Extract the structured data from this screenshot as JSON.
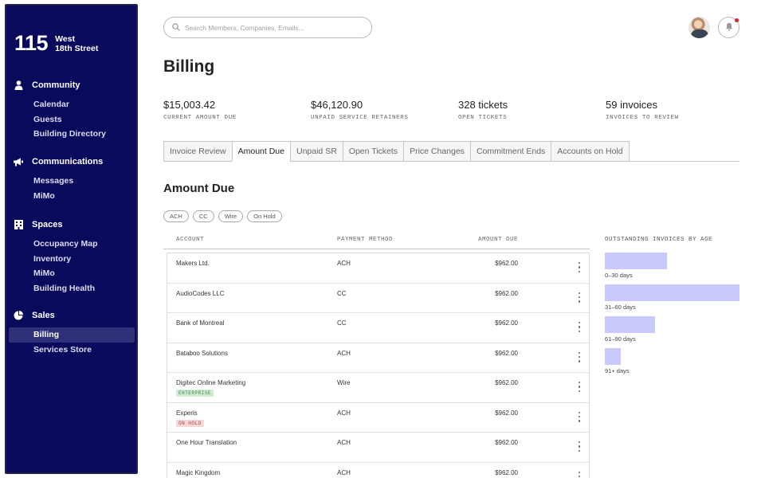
{
  "brand": {
    "number": "115",
    "line1": "West",
    "line2": "18th Street"
  },
  "sidebar": {
    "sections": [
      {
        "title": "Community",
        "icon": "person-icon",
        "items": [
          "Calendar",
          "Guests",
          "Building Directory"
        ]
      },
      {
        "title": "Communications",
        "icon": "megaphone-icon",
        "items": [
          "Messages",
          "MiMo"
        ]
      },
      {
        "title": "Spaces",
        "icon": "building-icon",
        "items": [
          "Occupancy Map",
          "Inventory",
          "MiMo",
          "Building Health"
        ]
      },
      {
        "title": "Sales",
        "icon": "pie-chart-icon",
        "items": [
          "Billing",
          "Services Store"
        ]
      }
    ],
    "active_item": "Billing"
  },
  "search": {
    "placeholder": "Search Members, Companies, Emails...",
    "value": ""
  },
  "page": {
    "title": "Billing"
  },
  "stats": [
    {
      "value": "$15,003.42",
      "label": "CURRENT AMOUNT DUE"
    },
    {
      "value": "$46,120.90",
      "label": "UNPAID SERVICE RETAINERS"
    },
    {
      "value": "328 tickets",
      "label": "OPEN TICKETS"
    },
    {
      "value": "59 invoices",
      "label": "INVOICES TO REVIEW"
    }
  ],
  "tabs": {
    "items": [
      "Invoice Review",
      "Amount Due",
      "Unpaid SR",
      "Open Tickets",
      "Price Changes",
      "Commitment Ends",
      "Accounts on Hold"
    ],
    "active": "Amount Due"
  },
  "section": {
    "title": "Amount Due"
  },
  "filters": [
    "ACH",
    "CC",
    "Wire",
    "On Hold"
  ],
  "table": {
    "headers": {
      "account": "ACCOUNT",
      "payment_method": "PAYMENT METHOD",
      "amount_due": "AMOUNT DUE"
    },
    "rows": [
      {
        "account": "Makers Ltd.",
        "payment_method": "ACH",
        "amount": "$962.00"
      },
      {
        "account": "AudioCodes LLC",
        "payment_method": "CC",
        "amount": "$962.00"
      },
      {
        "account": "Bank of Montreal",
        "payment_method": "CC",
        "amount": "$962.00"
      },
      {
        "account": "Bataboo Solutions",
        "payment_method": "ACH",
        "amount": "$962.00"
      },
      {
        "account": "Digitec Online Marketing",
        "payment_method": "Wire",
        "amount": "$962.00",
        "badge": "ENTERPRISE"
      },
      {
        "account": "Experis",
        "payment_method": "ACH",
        "amount": "$962.00",
        "badge": "ON HOLD"
      },
      {
        "account": "One Hour Translation",
        "payment_method": "ACH",
        "amount": "$962.00"
      },
      {
        "account": "Magic Kingdom",
        "payment_method": "ACH",
        "amount": "$962.00"
      }
    ]
  },
  "badge_colors": {
    "ENTERPRISE": {
      "bg": "#d3ecd6",
      "fg": "#3f8a4f"
    },
    "ON HOLD": {
      "bg": "#f6d6d6",
      "fg": "#b34545"
    }
  },
  "age_chart": {
    "title": "OUTSTANDING INVOICES BY AGE",
    "bar_color": "#c9c9fb",
    "buckets": [
      {
        "label": "0–30 days",
        "share": 0.46
      },
      {
        "label": "31–60 days",
        "share": 1.0
      },
      {
        "label": "61–90 days",
        "share": 0.37
      },
      {
        "label": "91+ days",
        "share": 0.12
      }
    ]
  },
  "colors": {
    "sidebar_bg": "#0a0a5c",
    "notification_dot": "#e0202a"
  }
}
